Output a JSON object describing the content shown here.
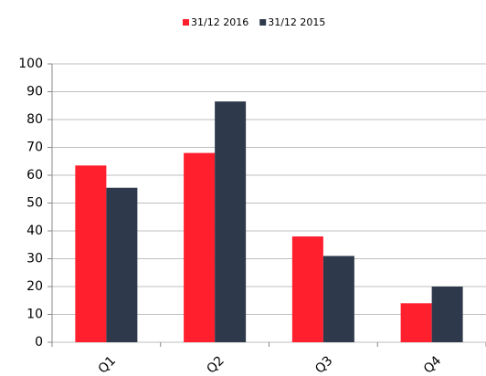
{
  "chart_data": {
    "type": "bar",
    "categories": [
      "Q1",
      "Q2",
      "Q3",
      "Q4"
    ],
    "series": [
      {
        "name": "31/12 2016",
        "color": "#ff1f2d",
        "values": [
          63.5,
          68,
          38,
          14
        ]
      },
      {
        "name": "31/12 2015",
        "color": "#2e3a4b",
        "values": [
          55.5,
          86.5,
          31,
          20
        ]
      }
    ],
    "ylim": [
      0,
      100
    ],
    "yticks": [
      0,
      10,
      20,
      30,
      40,
      50,
      60,
      70,
      80,
      90,
      100
    ],
    "grid": true,
    "legend": "top"
  }
}
